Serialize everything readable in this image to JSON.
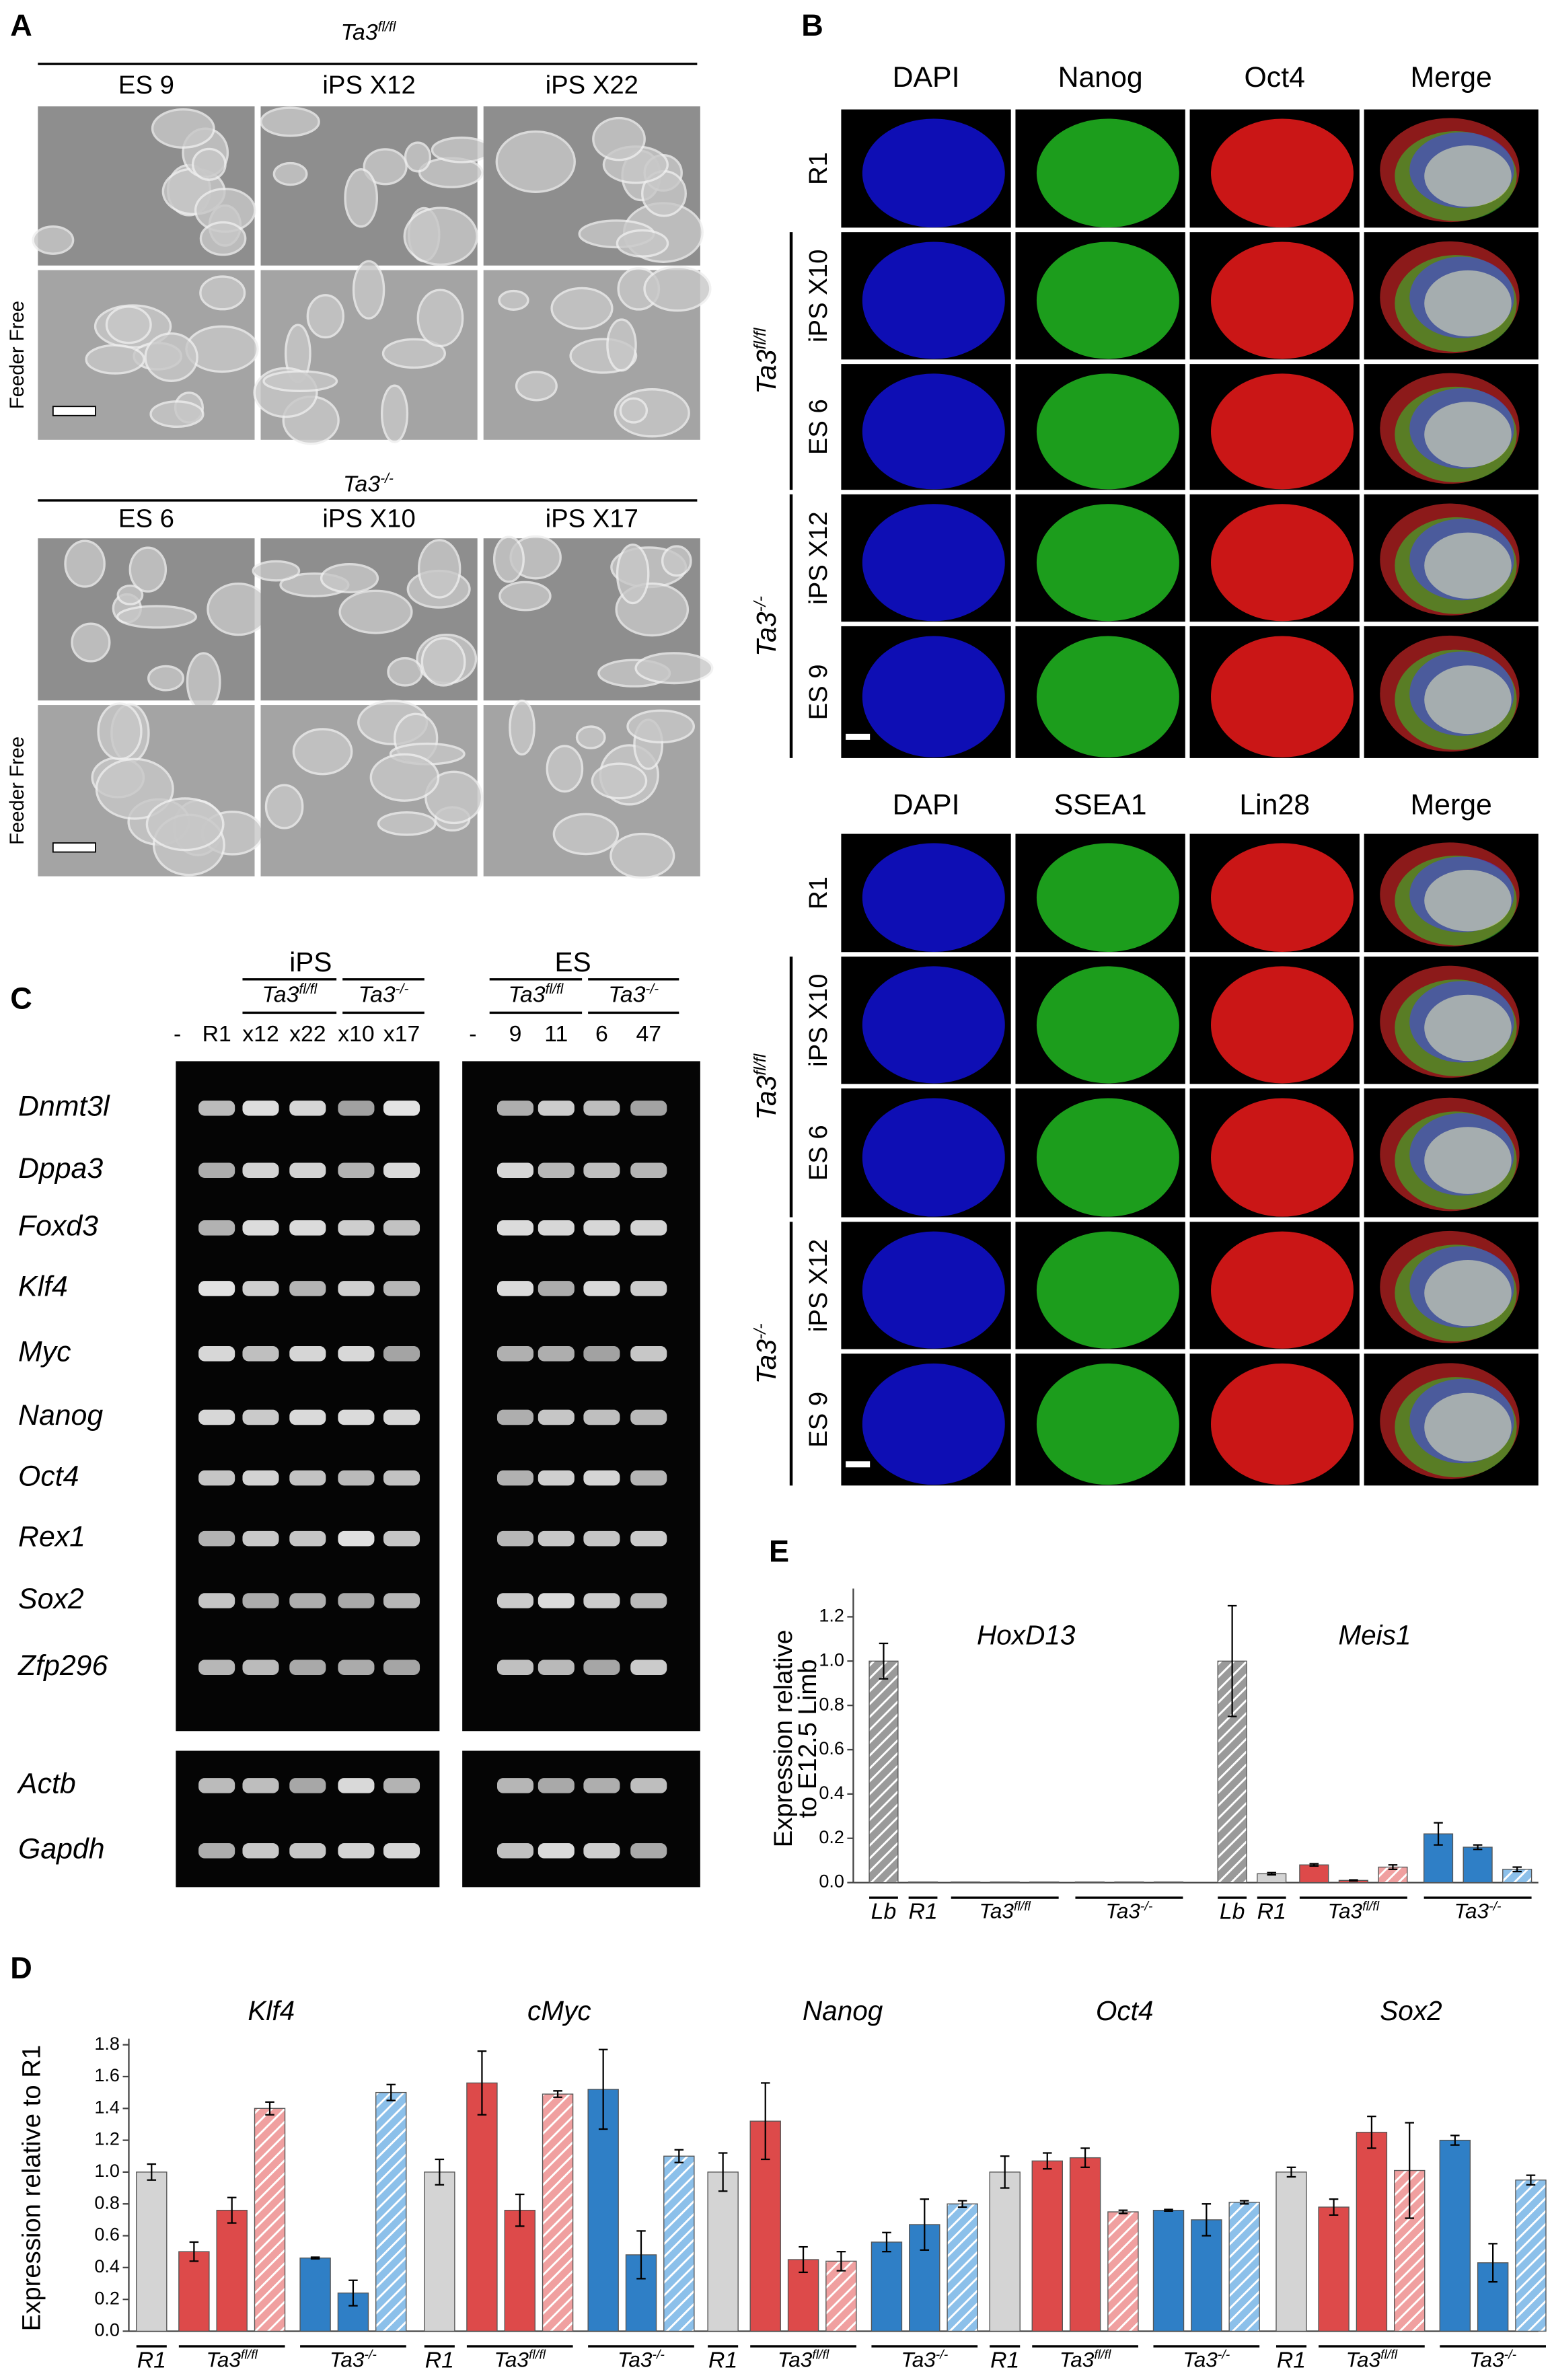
{
  "panel_a": {
    "letter": "A",
    "groups": [
      {
        "genotype": {
          "base": "Ta3",
          "sup": "fl/fl"
        },
        "columns": [
          "ES 9",
          "iPS X12",
          "iPS X22"
        ],
        "row_label": "Feeder Free"
      },
      {
        "genotype": {
          "base": "Ta3",
          "sup": "-/-"
        },
        "columns": [
          "ES 6",
          "iPS X10",
          "iPS X17"
        ],
        "row_label": "Feeder Free"
      }
    ]
  },
  "panel_b": {
    "letter": "B",
    "blocks": [
      {
        "headers": [
          "DAPI",
          "Nanog",
          "Oct4",
          "Merge"
        ],
        "rows": [
          "R1",
          "iPS X10",
          "ES 6",
          "iPS X12",
          "ES 9"
        ],
        "genotypes": [
          {
            "base": "Ta3",
            "sup": "fl/fl"
          },
          {
            "base": "Ta3",
            "sup": "-/-"
          }
        ]
      },
      {
        "headers": [
          "DAPI",
          "SSEA1",
          "Lin28",
          "Merge"
        ],
        "rows": [
          "R1",
          "iPS X10",
          "ES 6",
          "iPS X12",
          "ES 9"
        ],
        "genotypes": [
          {
            "base": "Ta3",
            "sup": "fl/fl"
          },
          {
            "base": "Ta3",
            "sup": "-/-"
          }
        ]
      }
    ]
  },
  "panel_c": {
    "letter": "C",
    "sections": [
      {
        "title": "iPS",
        "genotypes": [
          {
            "base": "Ta3",
            "sup": "fl/fl"
          },
          {
            "base": "Ta3",
            "sup": "-/-"
          }
        ],
        "lanes": [
          "-",
          "R1",
          "x12",
          "x22",
          "x10",
          "x17"
        ]
      },
      {
        "title": "ES",
        "genotypes": [
          {
            "base": "Ta3",
            "sup": "fl/fl"
          },
          {
            "base": "Ta3",
            "sup": "-/-"
          }
        ],
        "lanes": [
          "-",
          "9",
          "11",
          "6",
          "47"
        ]
      }
    ],
    "genes": [
      "Dnmt3l",
      "Dppa3",
      "Foxd3",
      "Klf4",
      "Myc",
      "Nanog",
      "Oct4",
      "Rex1",
      "Sox2",
      "Zfp296"
    ],
    "controls": [
      "Actb",
      "Gapdh"
    ]
  },
  "chart_data": [
    {
      "type": "bar",
      "panel": "E",
      "y_label": [
        "Expression relative",
        "to E12.5 Limb"
      ],
      "ylim": [
        0,
        1.3
      ],
      "yticks": [
        {
          "value": 0,
          "label": "0.0"
        },
        0.2,
        0.4,
        0.6,
        0.8,
        {
          "value": 1,
          "label": "1.0"
        },
        1.2
      ],
      "category_labels": [
        "Lb",
        "R1",
        {
          "base": "Ta3",
          "sup": "fl/fl"
        },
        {
          "base": "Ta3",
          "sup": "-/-"
        }
      ],
      "bar_colors": [
        "#9a9a9a",
        "#d4d4d4",
        "#dd4a4a",
        "#dd4a4a",
        "#f0a0a0",
        "#2f7fc6",
        "#2f7fc6",
        "#8cc0ea"
      ],
      "hatched": [
        true,
        false,
        false,
        false,
        true,
        false,
        false,
        true
      ],
      "groups": [
        {
          "name": "HoxD13",
          "values": [
            1.0,
            0.003,
            0.003,
            0.003,
            0.003,
            0.003,
            0.003,
            0.003
          ],
          "errors": [
            0.08,
            0,
            0,
            0,
            0,
            0,
            0,
            0
          ]
        },
        {
          "name": "Meis1",
          "values": [
            1.0,
            0.04,
            0.08,
            0.01,
            0.07,
            0.22,
            0.16,
            0.06
          ],
          "errors": [
            0.25,
            0.005,
            0.005,
            0.002,
            0.01,
            0.05,
            0.01,
            0.01
          ]
        }
      ]
    },
    {
      "type": "bar",
      "panel": "D",
      "y_label": [
        "Expression relative to R1"
      ],
      "ylim": [
        0,
        1.8
      ],
      "yticks": [
        {
          "value": 0,
          "label": "0.0"
        },
        0.2,
        0.4,
        0.6,
        0.8,
        {
          "value": 1,
          "label": "1.0"
        },
        1.2,
        1.4,
        1.6,
        1.8
      ],
      "category_labels": [
        "R1",
        {
          "base": "Ta3",
          "sup": "fl/fl"
        },
        {
          "base": "Ta3",
          "sup": "-/-"
        }
      ],
      "bar_colors": [
        "#d4d4d4",
        "#dd4a4a",
        "#dd4a4a",
        "#f0a0a0",
        "#2f7fc6",
        "#2f7fc6",
        "#8cc0ea"
      ],
      "hatched": [
        false,
        false,
        false,
        true,
        false,
        false,
        true
      ],
      "groups": [
        {
          "name": "Klf4",
          "values": [
            1.0,
            0.5,
            0.76,
            1.4,
            0.46,
            0.24,
            1.5
          ],
          "errors": [
            0.05,
            0.06,
            0.08,
            0.04,
            0.005,
            0.08,
            0.05
          ]
        },
        {
          "name": "cMyc",
          "values": [
            1.0,
            1.56,
            0.76,
            1.49,
            1.52,
            0.48,
            1.1
          ],
          "errors": [
            0.08,
            0.2,
            0.1,
            0.02,
            0.25,
            0.15,
            0.04
          ]
        },
        {
          "name": "Nanog",
          "values": [
            1.0,
            1.32,
            0.45,
            0.44,
            0.56,
            0.67,
            0.8
          ],
          "errors": [
            0.12,
            0.24,
            0.08,
            0.06,
            0.06,
            0.16,
            0.02
          ]
        },
        {
          "name": "Oct4",
          "values": [
            1.0,
            1.07,
            1.09,
            0.75,
            0.76,
            0.7,
            0.81
          ],
          "errors": [
            0.1,
            0.05,
            0.06,
            0.01,
            0.005,
            0.1,
            0.01
          ]
        },
        {
          "name": "Sox2",
          "values": [
            1.0,
            0.78,
            1.25,
            1.01,
            1.2,
            0.43,
            0.95
          ],
          "errors": [
            0.03,
            0.05,
            0.1,
            0.3,
            0.03,
            0.12,
            0.03
          ]
        }
      ]
    }
  ]
}
